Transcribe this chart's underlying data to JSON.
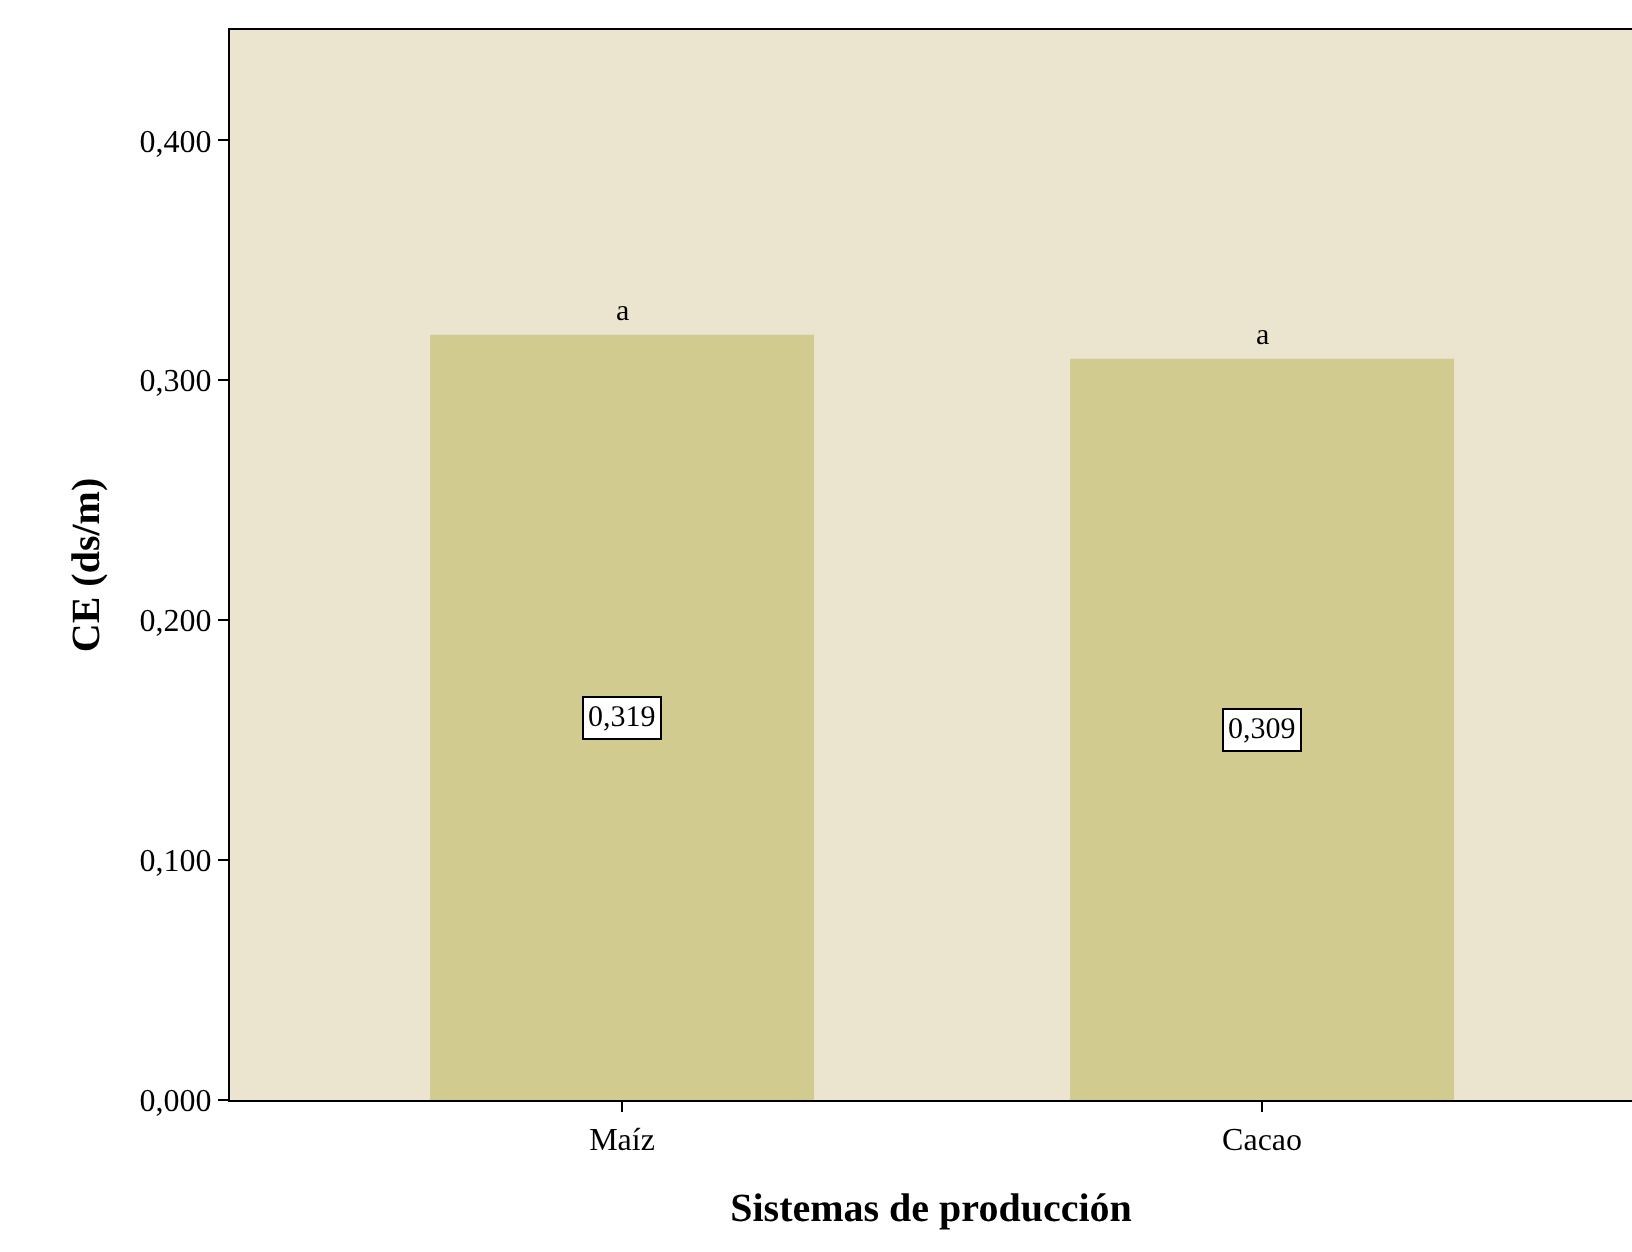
{
  "chart_data": {
    "type": "bar",
    "xlabel": "Sistemas de producción",
    "ylabel": "CE (ds/m)",
    "categories": [
      "Maíz",
      "Cacao"
    ],
    "values": [
      0.319,
      0.309
    ],
    "value_labels": [
      "0,319",
      "0,309"
    ],
    "color": "#d1cb8f",
    "ylim": [
      0,
      0.446
    ],
    "yticks": [
      {
        "value": 0,
        "label": "0,000"
      },
      {
        "value": 0.1,
        "label": "0,100"
      },
      {
        "value": 0.2,
        "label": "0,200"
      },
      {
        "value": 0.3,
        "label": "0,300"
      },
      {
        "value": 0.4,
        "label": "0,400"
      }
    ],
    "annotations": [
      {
        "text": "a",
        "x": "Maíz",
        "y": 0.319
      },
      {
        "text": "a",
        "x": "Cacao",
        "y": 0.309
      }
    ]
  }
}
